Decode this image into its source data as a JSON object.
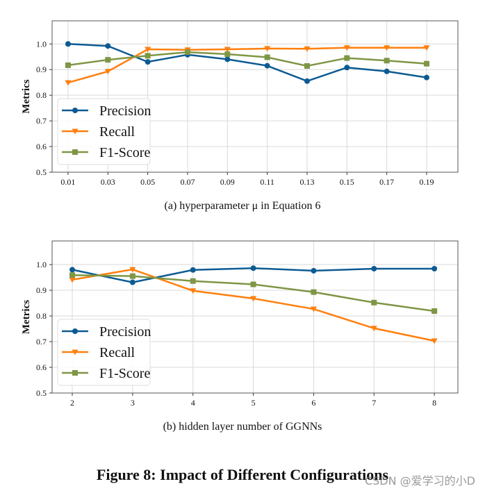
{
  "chart_data": [
    {
      "type": "line",
      "caption": "(a)  hyperparameter μ in Equation 6",
      "ylabel": "Metrics",
      "xlabel": "",
      "x": [
        0.01,
        0.03,
        0.05,
        0.07,
        0.09,
        0.11,
        0.13,
        0.15,
        0.17,
        0.19
      ],
      "x_tick_labels": [
        "0.01",
        "0.03",
        "0.05",
        "0.07",
        "0.09",
        "0.11",
        "0.13",
        "0.15",
        "0.17",
        "0.19"
      ],
      "y_ticks": [
        0.5,
        0.6,
        0.7,
        0.8,
        0.9,
        1.0
      ],
      "y_tick_labels": [
        "0.5",
        "0.6",
        "0.7",
        "0.8",
        "0.9",
        "1.0"
      ],
      "xlim": [
        0.002,
        0.2057
      ],
      "ylim": [
        0.5,
        1.09
      ],
      "grid": true,
      "legend": "lower-left",
      "series": [
        {
          "name": "Precision",
          "color": "#0d5a93",
          "marker": "circle",
          "values": [
            1.0,
            0.992,
            0.93,
            0.958,
            0.94,
            0.915,
            0.855,
            0.908,
            0.893,
            0.869
          ]
        },
        {
          "name": "Recall",
          "color": "#ff7f0e",
          "marker": "triangle-down",
          "values": [
            0.849,
            0.893,
            0.979,
            0.977,
            0.979,
            0.982,
            0.981,
            0.985,
            0.985,
            0.985
          ]
        },
        {
          "name": "F1-Score",
          "color": "#7f9645",
          "marker": "square",
          "values": [
            0.917,
            0.938,
            0.954,
            0.968,
            0.96,
            0.948,
            0.914,
            0.945,
            0.935,
            0.923
          ]
        }
      ]
    },
    {
      "type": "line",
      "caption": "(b)  hidden layer number of GGNNs",
      "ylabel": "Metrics",
      "xlabel": "",
      "x": [
        2,
        3,
        4,
        5,
        6,
        7,
        8
      ],
      "x_tick_labels": [
        "2",
        "3",
        "4",
        "5",
        "6",
        "7",
        "8"
      ],
      "y_ticks": [
        0.5,
        0.6,
        0.7,
        0.8,
        0.9,
        1.0
      ],
      "y_tick_labels": [
        "0.5",
        "0.6",
        "0.7",
        "0.8",
        "0.9",
        "1.0"
      ],
      "xlim": [
        1.666,
        8.39
      ],
      "ylim": [
        0.5,
        1.092
      ],
      "grid": true,
      "legend": "lower-left",
      "series": [
        {
          "name": "Precision",
          "color": "#0d5a93",
          "marker": "circle",
          "values": [
            0.98,
            0.931,
            0.979,
            0.986,
            0.976,
            0.984,
            0.984
          ]
        },
        {
          "name": "Recall",
          "color": "#ff7f0e",
          "marker": "triangle-down",
          "values": [
            0.941,
            0.981,
            0.898,
            0.868,
            0.827,
            0.752,
            0.703
          ]
        },
        {
          "name": "F1-Score",
          "color": "#7f9645",
          "marker": "square",
          "values": [
            0.959,
            0.955,
            0.936,
            0.923,
            0.893,
            0.852,
            0.819
          ]
        }
      ]
    }
  ],
  "figure_title": "Figure 8: Impact of Different Configurations",
  "watermark": "CSDN @爱学习的小D"
}
